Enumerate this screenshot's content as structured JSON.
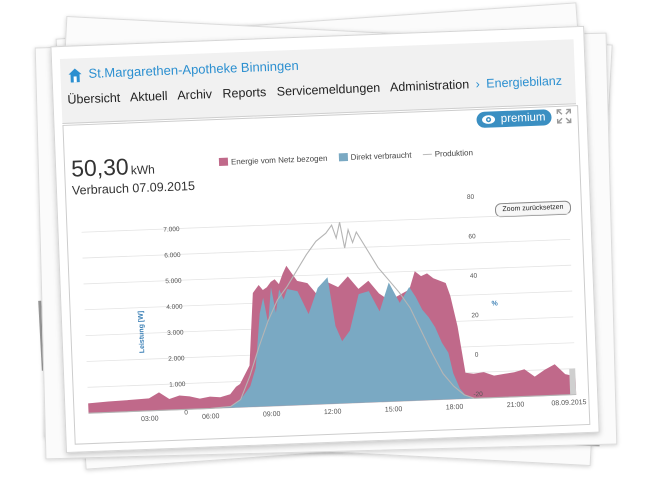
{
  "header": {
    "site_title": "St.Margarethen-Apotheke Binningen",
    "nav_items": [
      "Übersicht",
      "Aktuell",
      "Archiv",
      "Reports",
      "Servicemeldungen",
      "Administration"
    ],
    "breadcrumb_current": "Energiebilanz"
  },
  "toolbar": {
    "premium_label": "premium",
    "premium_icon": "eye-icon",
    "expand_icon": "expand-icon"
  },
  "summary": {
    "value": "50,30",
    "unit": "kWh",
    "label": "Verbrauch 07.09.2015"
  },
  "zoom_reset_label": "Zoom zurücksetzen",
  "chart_data": {
    "type": "area",
    "legend": [
      "Energie vom Netz bezogen",
      "Direkt verbraucht",
      "Produktion"
    ],
    "legend_position": "top",
    "colors": {
      "netz": "#c0698a",
      "direkt": "#7aa9c3",
      "produktion": "#b5b5b5"
    },
    "ylabel": "Leistung [W]",
    "y2label": "%",
    "y_ticks": [
      "1.000",
      "2.000",
      "3.000",
      "4.000",
      "5.000",
      "6.000",
      "7.000"
    ],
    "y2_ticks": [
      "-20",
      "0",
      "20",
      "40",
      "60",
      "80"
    ],
    "x_ticks": [
      "03:00",
      "06:00",
      "09:00",
      "12:00",
      "15:00",
      "18:00",
      "21:00",
      "08.09.2015"
    ],
    "x_tick_zero": "0",
    "ylim": [
      0,
      7500
    ],
    "xlim": [
      0,
      24
    ],
    "grid": true,
    "series": [
      {
        "name": "Energie vom Netz bezogen",
        "x": [
          0,
          1,
          2,
          3,
          3.5,
          4,
          4.5,
          5,
          5.5,
          6,
          6.5,
          7,
          7.3,
          7.5,
          8,
          8.3,
          8.6,
          8.8,
          9,
          9.2,
          9.4,
          9.6,
          9.8,
          10,
          10.5,
          11,
          11.5,
          12,
          12.5,
          13,
          13.5,
          14,
          14.5,
          15,
          15.5,
          16,
          16.3,
          16.6,
          16.9,
          17.2,
          17.5,
          17.8,
          18,
          18.3,
          18.6,
          19,
          19.5,
          20,
          20.5,
          21,
          21.5,
          22,
          22.5,
          23,
          23.5,
          24
        ],
        "y": [
          380,
          420,
          450,
          480,
          700,
          430,
          550,
          500,
          400,
          460,
          420,
          520,
          800,
          900,
          1600,
          4400,
          4700,
          4500,
          4600,
          4800,
          4900,
          4700,
          5100,
          5400,
          4800,
          4700,
          4200,
          4700,
          4500,
          4900,
          4400,
          4700,
          4200,
          3900,
          4100,
          4300,
          5000,
          4800,
          4900,
          4700,
          4600,
          4500,
          4000,
          2800,
          1000,
          950,
          1000,
          850,
          900,
          950,
          1050,
          750,
          1000,
          1200,
          800,
          700
        ]
      },
      {
        "name": "Direkt verbraucht",
        "x": [
          0,
          6,
          7,
          7.5,
          8,
          8.3,
          8.6,
          8.8,
          9,
          9.2,
          9.4,
          9.6,
          9.8,
          10,
          10.5,
          11,
          11.5,
          12,
          12.3,
          12.6,
          13,
          13.5,
          14,
          14.5,
          15,
          15.5,
          16,
          16.3,
          16.6,
          16.9,
          17.2,
          17.5,
          17.8,
          18,
          18.3,
          18.6,
          19,
          24
        ],
        "y": [
          0,
          0,
          50,
          300,
          800,
          1500,
          3600,
          4200,
          3200,
          4600,
          3600,
          4500,
          4100,
          4500,
          4400,
          3500,
          4500,
          4900,
          3000,
          2400,
          2800,
          4200,
          4300,
          3500,
          4600,
          3800,
          4400,
          4000,
          3500,
          3200,
          2800,
          2200,
          1800,
          1000,
          400,
          100,
          0,
          0
        ]
      },
      {
        "name": "Produktion",
        "x": [
          0,
          6,
          7,
          7.5,
          8,
          8.5,
          9,
          9.5,
          10,
          10.5,
          11,
          11.5,
          12,
          12.3,
          12.5,
          12.7,
          12.9,
          13.1,
          13.3,
          13.5,
          14,
          14.5,
          15,
          15.5,
          16,
          16.5,
          17,
          17.5,
          18,
          18.5,
          19,
          24
        ],
        "y": [
          0,
          0,
          50,
          300,
          1200,
          2300,
          3300,
          4100,
          4600,
          5200,
          5800,
          6300,
          6600,
          6900,
          6400,
          7000,
          6000,
          6700,
          6200,
          6600,
          5900,
          5200,
          4700,
          4200,
          3600,
          2700,
          1800,
          1000,
          500,
          150,
          0,
          0
        ]
      }
    ]
  }
}
